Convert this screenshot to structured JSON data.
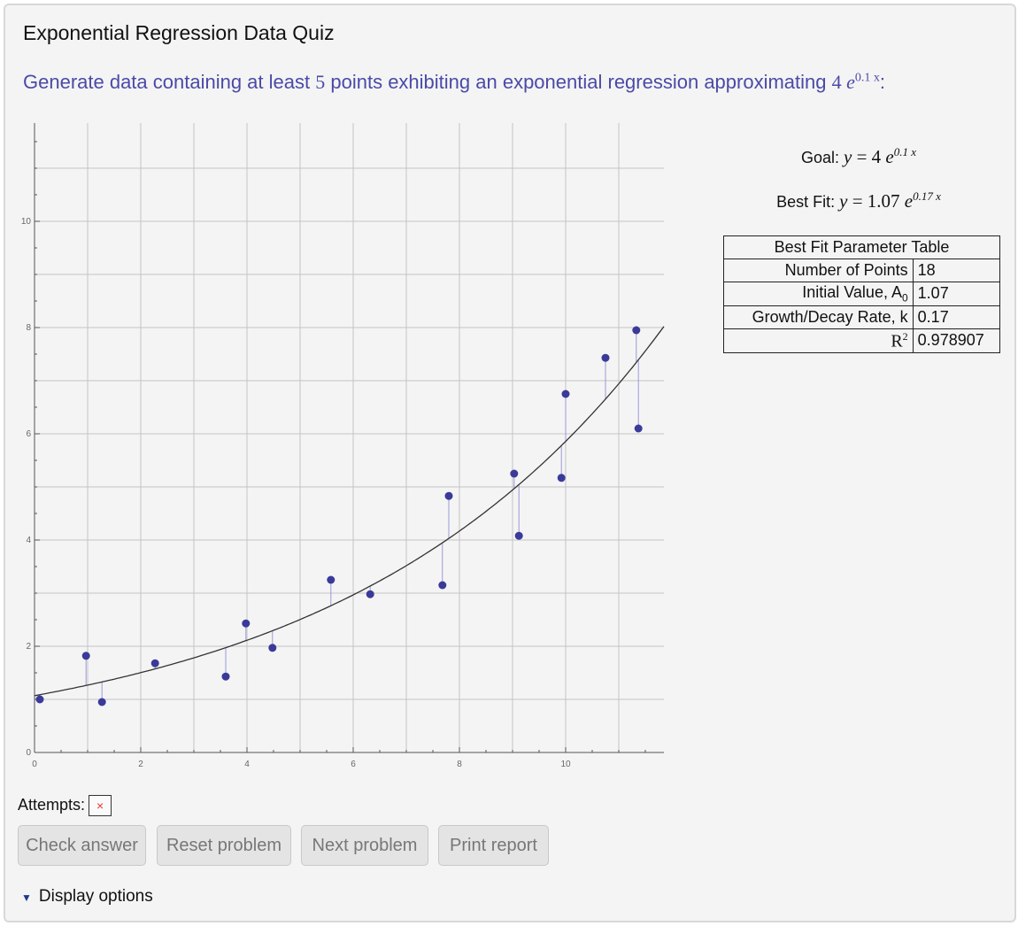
{
  "title": "Exponential Regression Data Quiz",
  "prompt": {
    "text": "Generate data containing at least",
    "min_points": "5",
    "text2": "points exhibiting an exponential regression approximating",
    "coef": "4",
    "base": "e",
    "exponent": "0.1 x",
    "suffix": ":"
  },
  "goal": {
    "label": "Goal:",
    "lhs": "y",
    "eq": "= 4",
    "base": "e",
    "exponent": "0.1 x"
  },
  "best_fit": {
    "label": "Best Fit:",
    "lhs": "y",
    "eq": "= 1.07",
    "base": "e",
    "exponent": "0.17 x"
  },
  "param_table": {
    "title": "Best Fit Parameter Table",
    "rows": [
      {
        "label": "Number of Points",
        "value": "18"
      },
      {
        "label": "Initial Value, A",
        "sub": "0",
        "value": "1.07"
      },
      {
        "label": "Growth/Decay Rate, k",
        "value": "0.17"
      },
      {
        "label": "R",
        "sup": "2",
        "value": "0.978907"
      }
    ]
  },
  "attempts": {
    "label": "Attempts:",
    "marks": [
      "×"
    ]
  },
  "buttons": {
    "check": "Check answer",
    "reset": "Reset problem",
    "next": "Next problem",
    "print": "Print report"
  },
  "display_options": "Display options",
  "chart_data": {
    "type": "scatter",
    "xlim": [
      0,
      11.85
    ],
    "ylim": [
      0,
      11.85
    ],
    "xticks": [
      "0",
      "2",
      "4",
      "6",
      "8",
      "10"
    ],
    "yticks": [
      "0",
      "2",
      "4",
      "6",
      "8",
      "10"
    ],
    "grid": true,
    "fit": {
      "A": 1.07,
      "k": 0.17
    },
    "points": [
      [
        0.1,
        1.0
      ],
      [
        0.97,
        1.82
      ],
      [
        1.27,
        0.95
      ],
      [
        2.27,
        1.68
      ],
      [
        3.6,
        1.43
      ],
      [
        3.98,
        2.43
      ],
      [
        4.48,
        1.97
      ],
      [
        5.58,
        3.25
      ],
      [
        6.32,
        2.98
      ],
      [
        7.68,
        3.15
      ],
      [
        7.8,
        4.83
      ],
      [
        9.03,
        5.25
      ],
      [
        9.12,
        4.08
      ],
      [
        9.92,
        5.17
      ],
      [
        10.0,
        6.75
      ],
      [
        10.75,
        7.43
      ],
      [
        11.33,
        7.95
      ],
      [
        11.37,
        6.1
      ]
    ],
    "colors": {
      "point": "#3a3a9a",
      "residual": "#9a9ad8",
      "curve": "#333333",
      "grid": "#c4c4c4"
    }
  }
}
